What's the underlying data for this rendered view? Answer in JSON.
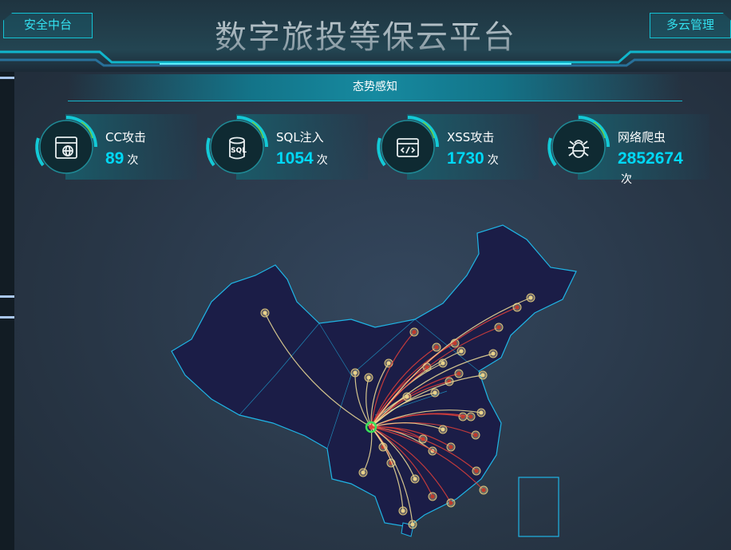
{
  "header": {
    "title": "数字旅投等保云平台",
    "left_button": "安全中台",
    "right_button": "多云管理"
  },
  "section": {
    "title": "态势感知"
  },
  "stats": [
    {
      "label": "CC攻击",
      "value": "89",
      "unit": "次",
      "icon": "browser-globe-icon"
    },
    {
      "label": "SQL注入",
      "value": "1054",
      "unit": "次",
      "icon": "database-sql-icon"
    },
    {
      "label": "XSS攻击",
      "value": "1730",
      "unit": "次",
      "icon": "code-window-icon"
    },
    {
      "label": "网络爬虫",
      "value": "2852674",
      "unit": "次",
      "icon": "bug-icon"
    }
  ],
  "colors": {
    "accent": "#00d8f5",
    "frame": "#13c2d4",
    "map_fill": "#1b1d47",
    "map_border": "#1fb5e6",
    "line_red": "#e0403a",
    "line_yellow": "#f3e29a",
    "source": "#39e25a"
  }
}
